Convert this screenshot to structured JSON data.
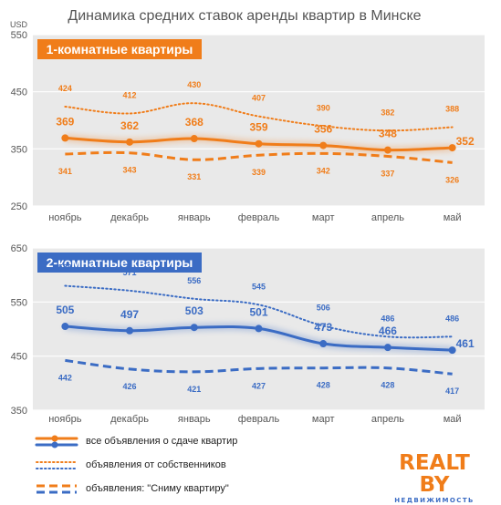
{
  "title": "Динамика средних ставок аренды квартир в Минске",
  "colors": {
    "orange": "#f07d1a",
    "blue": "#3b6cc4",
    "panel_bg": "#e9e9e9",
    "grid": "#ffffff",
    "axis_text": "#555555"
  },
  "legend": {
    "items": [
      {
        "label": "все объявления о сдаче квартир",
        "style": "solid"
      },
      {
        "label": "объявления от собственников",
        "style": "dotted"
      },
      {
        "label": "объявления: \"Сниму квартиру\"",
        "style": "dashed"
      }
    ]
  },
  "logo": {
    "brand": "REALT BY",
    "tagline": "НЕДВИЖИМОСТЬ"
  },
  "chart_data": [
    {
      "type": "line",
      "title": "1-комнатные квартиры",
      "ylabel": "USD",
      "color": "#f07d1a",
      "categories": [
        "ноябрь",
        "декабрь",
        "январь",
        "февраль",
        "март",
        "апрель",
        "май"
      ],
      "ylim": [
        250,
        550
      ],
      "yticks": [
        250,
        350,
        450,
        550
      ],
      "grid": true,
      "series": [
        {
          "name": "все объявления о сдаче квартир",
          "style": "solid",
          "values": [
            369,
            362,
            368,
            359,
            356,
            348,
            352
          ]
        },
        {
          "name": "объявления от собственников",
          "style": "dotted",
          "values": [
            424,
            412,
            430,
            407,
            390,
            382,
            388
          ]
        },
        {
          "name": "объявления: \"Сниму квартиру\"",
          "style": "dashed",
          "values": [
            341,
            343,
            331,
            339,
            342,
            337,
            326
          ]
        }
      ]
    },
    {
      "type": "line",
      "title": "2-комнатные квартиры",
      "ylabel": "",
      "color": "#3b6cc4",
      "categories": [
        "ноябрь",
        "декабрь",
        "январь",
        "февраль",
        "март",
        "апрель",
        "май"
      ],
      "ylim": [
        350,
        650
      ],
      "yticks": [
        350,
        450,
        550,
        650
      ],
      "grid": true,
      "series": [
        {
          "name": "все объявления о сдаче квартир",
          "style": "solid",
          "values": [
            505,
            497,
            503,
            501,
            473,
            466,
            461
          ]
        },
        {
          "name": "объявления от собственников",
          "style": "dotted",
          "values": [
            580,
            571,
            556,
            545,
            506,
            486,
            486
          ]
        },
        {
          "name": "объявления: \"Сниму квартиру\"",
          "style": "dashed",
          "values": [
            442,
            426,
            421,
            427,
            428,
            428,
            417
          ]
        }
      ]
    }
  ]
}
